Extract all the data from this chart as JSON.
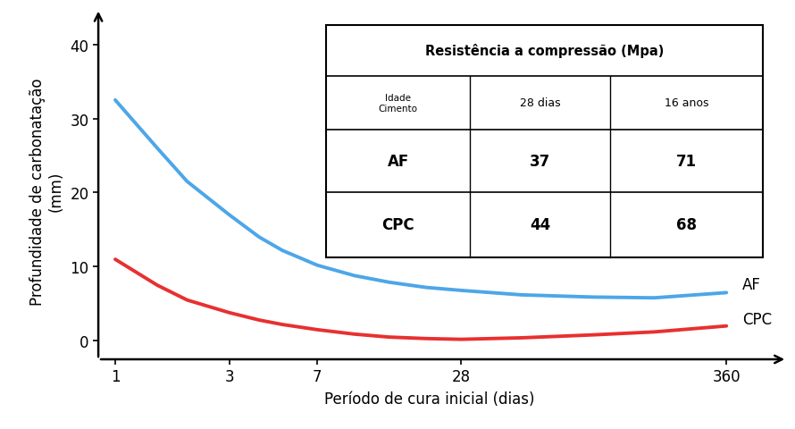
{
  "af_x": [
    1,
    1.5,
    2,
    3,
    4,
    5,
    7,
    10,
    14,
    20,
    28,
    50,
    100,
    180,
    360
  ],
  "af_y": [
    32.5,
    26.0,
    21.5,
    17.0,
    14.0,
    12.2,
    10.2,
    8.8,
    7.9,
    7.2,
    6.8,
    6.2,
    5.9,
    5.8,
    6.5
  ],
  "cpc_x": [
    1,
    1.5,
    2,
    3,
    4,
    5,
    7,
    10,
    14,
    20,
    28,
    50,
    100,
    180,
    360
  ],
  "cpc_y": [
    11.0,
    7.5,
    5.5,
    3.8,
    2.8,
    2.2,
    1.5,
    0.9,
    0.5,
    0.3,
    0.2,
    0.4,
    0.8,
    1.2,
    2.0
  ],
  "af_color": "#4da6e8",
  "cpc_color": "#e83030",
  "xlabel": "Período de cura inicial (dias)",
  "ylabel": "Profundidade de carbonatação\n(mm)",
  "xticks": [
    1,
    3,
    7,
    28,
    360
  ],
  "yticks": [
    0,
    10,
    20,
    30,
    40
  ],
  "ylim": [
    -2.5,
    43
  ],
  "xlim_log": [
    0.85,
    500
  ],
  "af_label": "AF",
  "cpc_label": "CPC",
  "table_title": "Resistência a compressão (Mpa)",
  "table_header_col1": "Idade\nCimento",
  "table_header_col2": "28 dias",
  "table_header_col3": "16 anos",
  "table_row1": [
    "AF",
    "37",
    "71"
  ],
  "table_row2": [
    "CPC",
    "44",
    "68"
  ],
  "line_width": 2.8
}
